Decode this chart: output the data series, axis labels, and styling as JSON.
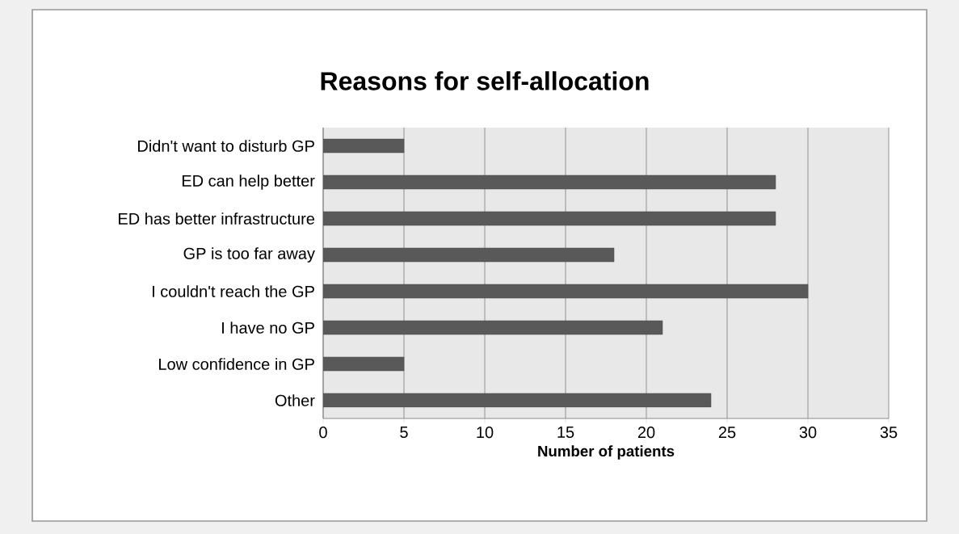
{
  "chart_data": {
    "type": "bar",
    "orientation": "horizontal",
    "title": "Reasons for self-allocation",
    "xlabel": "Number of patients",
    "categories": [
      "Didn't want to disturb GP",
      "ED can help better",
      "ED has better infrastructure",
      "GP is too far away",
      "I couldn't reach the GP",
      "I have no GP",
      "Low confidence in GP",
      "Other"
    ],
    "values": [
      5,
      28,
      28,
      18,
      30,
      21,
      5,
      24
    ],
    "color": "#595959",
    "xlim": [
      0,
      35
    ],
    "xticks": [
      0,
      5,
      10,
      15,
      20,
      25,
      30,
      35
    ],
    "grid": "x"
  }
}
